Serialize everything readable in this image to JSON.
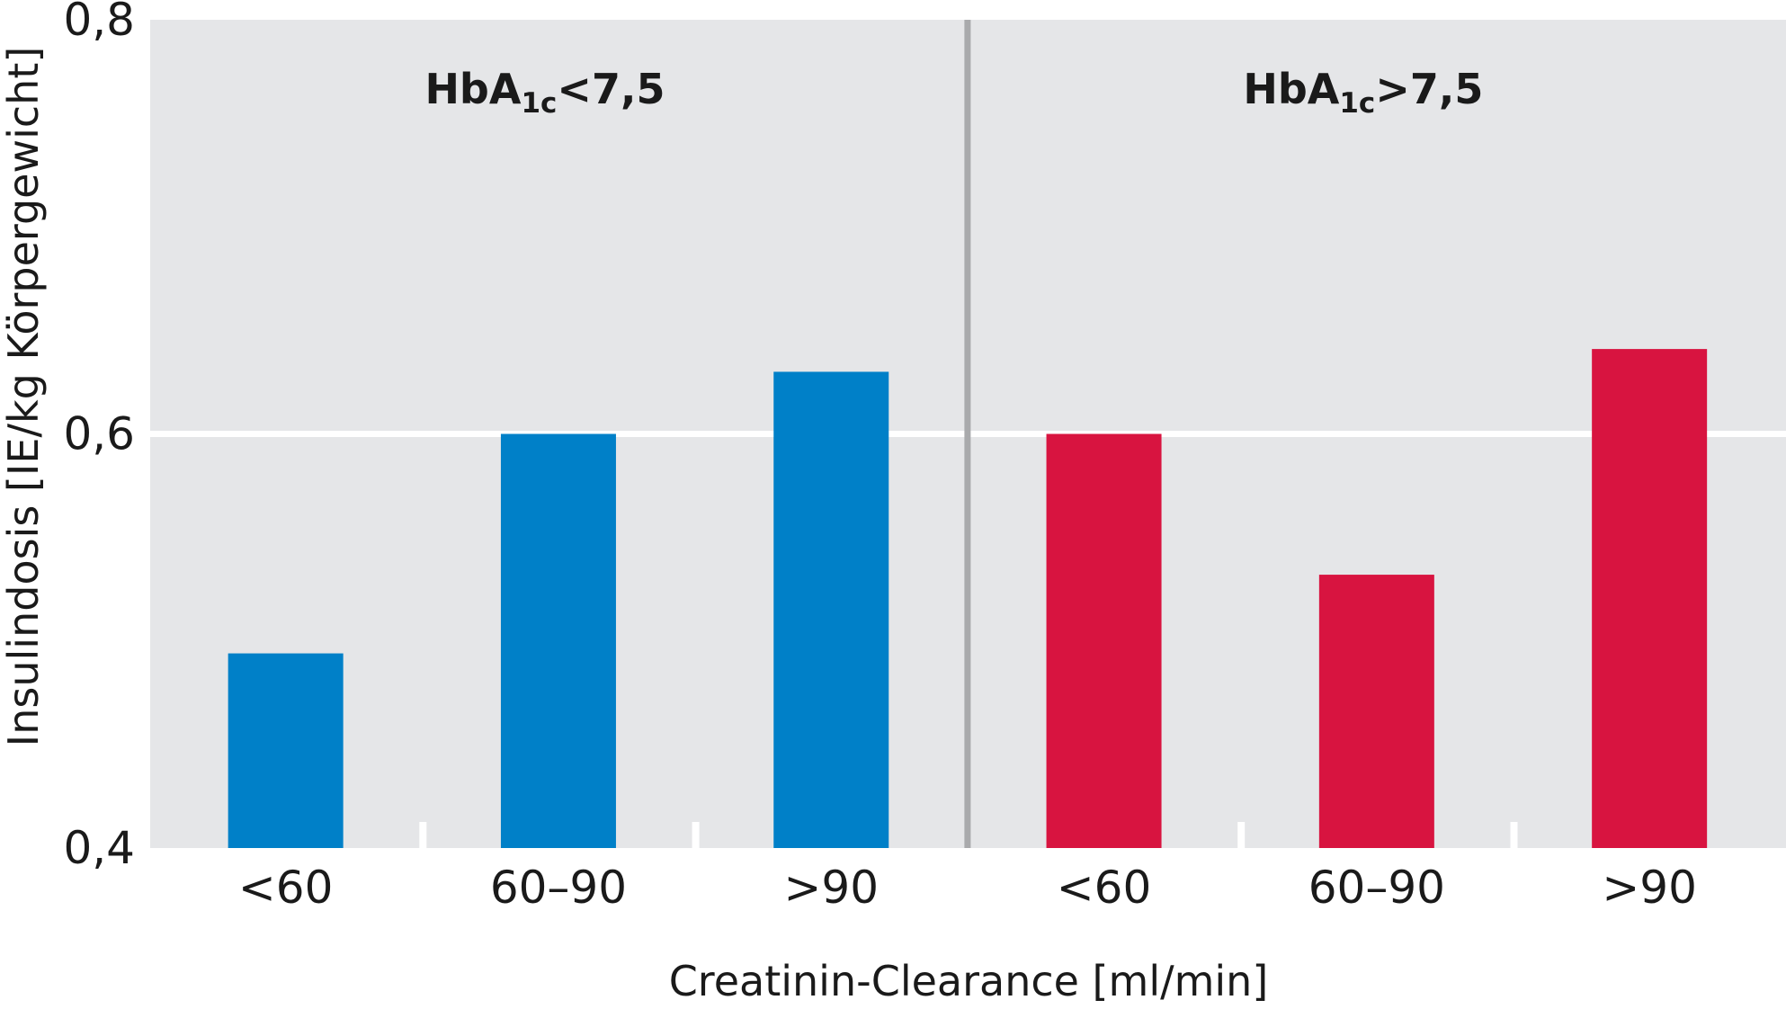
{
  "chart_data": {
    "type": "bar",
    "xlabel": "Creatinin-Clearance [ml/min]",
    "ylabel": "Insulindosis [IE/kg Körpergewicht]",
    "ylim": [
      0.4,
      0.8
    ],
    "yticks": [
      {
        "value": 0.4,
        "label": "0,4"
      },
      {
        "value": 0.6,
        "label": "0,6"
      },
      {
        "value": 0.8,
        "label": "0,8"
      }
    ],
    "grid": true,
    "groups": [
      {
        "label_main": "HbA",
        "label_sub": "1c",
        "label_rest": "<7,5",
        "color": "#0080C8",
        "categories": [
          "<60",
          "60–90",
          ">90"
        ],
        "values": [
          0.494,
          0.6,
          0.63
        ]
      },
      {
        "label_main": "HbA",
        "label_sub": "1c",
        "label_rest": ">7,5",
        "color": "#D81440",
        "categories": [
          "<60",
          "60–90",
          ">90"
        ],
        "values": [
          0.6,
          0.532,
          0.641
        ]
      }
    ],
    "background_color": "#E5E6E8",
    "divider_color": "#A9AAAC"
  }
}
